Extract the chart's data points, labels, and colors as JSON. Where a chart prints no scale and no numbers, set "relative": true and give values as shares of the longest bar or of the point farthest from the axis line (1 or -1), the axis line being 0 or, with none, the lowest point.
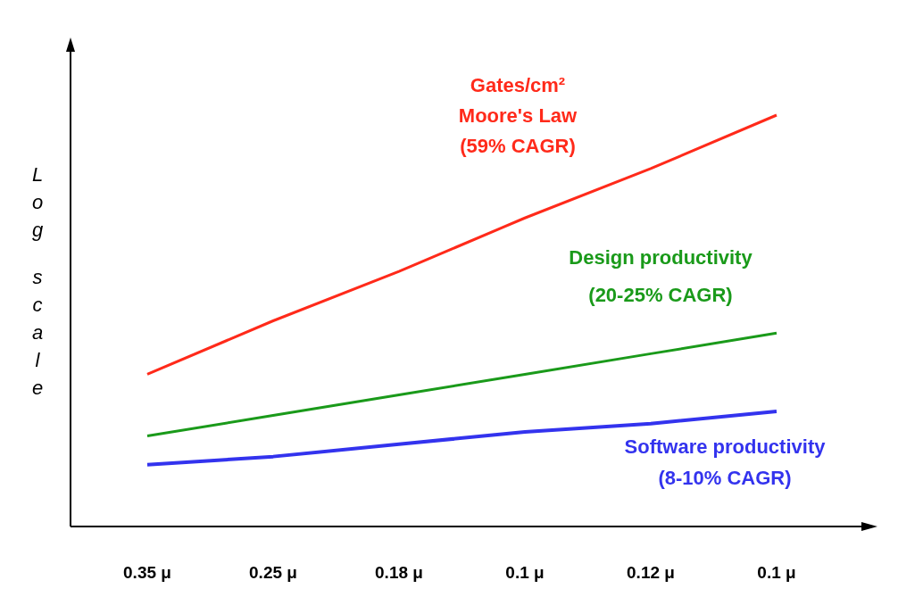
{
  "chart_data": {
    "type": "line",
    "relative": true,
    "ylabel": "Log scale",
    "categories": [
      "0.35 μ",
      "0.25 μ",
      "0.18 μ",
      "0.1 μ",
      "0.12 μ",
      "0.1 μ"
    ],
    "series": [
      {
        "name": "Gates/cm²\nMoore's Law\n(59% CAGR)",
        "color": "#ff2a1a",
        "values": [
          0.37,
          0.5,
          0.62,
          0.75,
          0.87,
          1
        ]
      },
      {
        "name": "Design productivity\n(20-25% CAGR)",
        "color": "#1a9a1a",
        "values": [
          0.22,
          0.27,
          0.32,
          0.37,
          0.42,
          0.47
        ]
      },
      {
        "name": "Software productivity\n(8-10% CAGR)",
        "color": "#3333ee",
        "values": [
          0.15,
          0.17,
          0.2,
          0.23,
          0.25,
          0.28
        ]
      }
    ],
    "grid": false,
    "marker": "none",
    "line_style": "solid"
  }
}
